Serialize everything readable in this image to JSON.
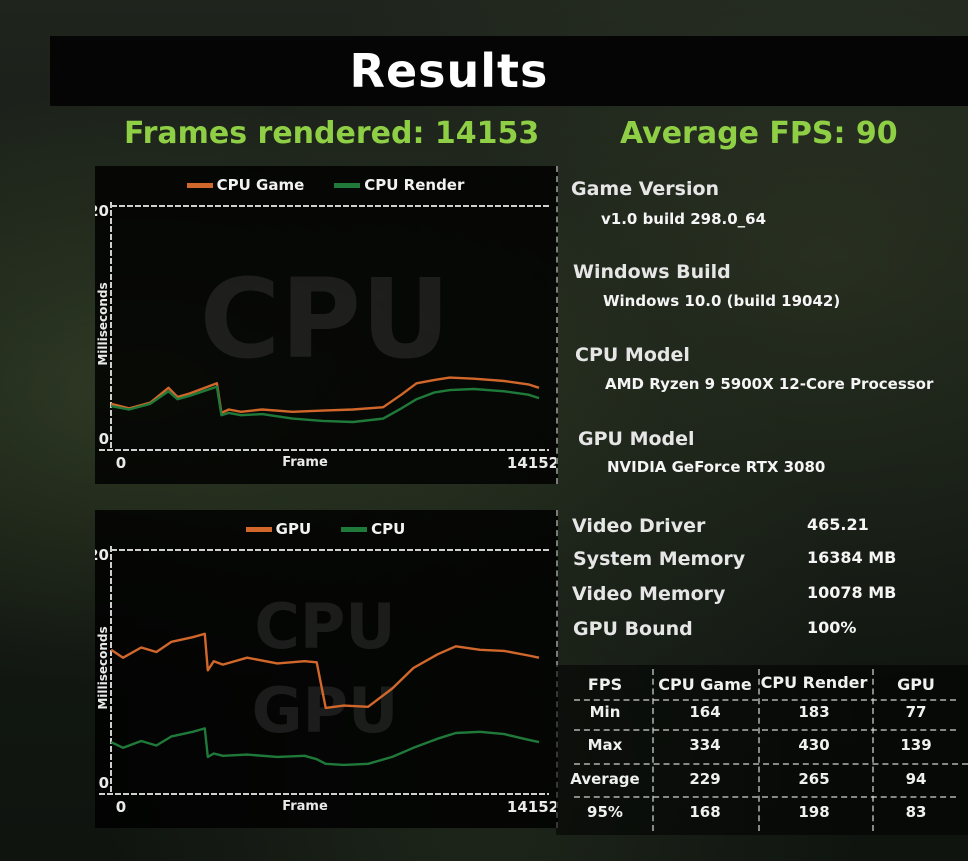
{
  "title": "Results",
  "frames_rendered": "Frames rendered: 14153",
  "average_fps": "Average FPS: 90",
  "colors": {
    "orange": "#d2672b",
    "green": "#1f7a3a",
    "headline": "#8fcf45"
  },
  "chart_data": [
    {
      "type": "line",
      "watermark": "CPU",
      "xlabel": "Frame",
      "ylabel": "Milliseconds",
      "xlim": [
        0,
        14152
      ],
      "ylim": [
        0,
        20
      ],
      "x_tick_labels": [
        "0",
        "14152"
      ],
      "y_tick_labels": [
        "0",
        "20"
      ],
      "legend_position": "top",
      "series": [
        {
          "name": "CPU Game",
          "color": "#d2672b",
          "x": [
            0,
            600,
            1300,
            1900,
            2200,
            2600,
            3500,
            3650,
            3900,
            4300,
            5000,
            6000,
            7000,
            8000,
            9000,
            9600,
            10100,
            10700,
            11200,
            12000,
            13000,
            13800,
            14152
          ],
          "values": [
            3.0,
            2.6,
            3.1,
            4.4,
            3.6,
            3.9,
            4.8,
            2.2,
            2.5,
            2.3,
            2.5,
            2.3,
            2.4,
            2.5,
            2.7,
            3.8,
            4.8,
            5.1,
            5.3,
            5.2,
            5.0,
            4.7,
            4.4
          ]
        },
        {
          "name": "CPU Render",
          "color": "#1f7a3a",
          "x": [
            0,
            600,
            1300,
            1900,
            2200,
            2600,
            3500,
            3650,
            3900,
            4300,
            5000,
            6000,
            7000,
            8000,
            9000,
            9600,
            10100,
            10700,
            11200,
            12000,
            13000,
            13800,
            14152
          ],
          "values": [
            2.8,
            2.5,
            3.0,
            4.1,
            3.4,
            3.7,
            4.5,
            2.0,
            2.2,
            2.0,
            2.1,
            1.7,
            1.5,
            1.4,
            1.7,
            2.6,
            3.4,
            4.0,
            4.2,
            4.3,
            4.1,
            3.8,
            3.5
          ]
        }
      ]
    },
    {
      "type": "line",
      "watermark_lines": [
        "CPU",
        "GPU"
      ],
      "xlabel": "Frame",
      "ylabel": "Milliseconds",
      "xlim": [
        0,
        14152
      ],
      "ylim": [
        0,
        20
      ],
      "x_tick_labels": [
        "0",
        "14152"
      ],
      "y_tick_labels": [
        "0",
        "20"
      ],
      "legend_position": "top",
      "series": [
        {
          "name": "GPU",
          "color": "#d2672b",
          "x": [
            0,
            400,
            1000,
            1500,
            2000,
            2700,
            3100,
            3200,
            3400,
            3700,
            4500,
            5500,
            6400,
            6800,
            7100,
            7700,
            8500,
            9300,
            10000,
            10800,
            11400,
            12200,
            13000,
            13800,
            14152
          ],
          "values": [
            11.6,
            10.9,
            11.8,
            11.4,
            12.3,
            12.7,
            13.0,
            9.8,
            10.6,
            10.3,
            10.9,
            10.4,
            10.6,
            10.5,
            6.5,
            6.7,
            6.6,
            8.2,
            10.0,
            11.2,
            11.9,
            11.6,
            11.5,
            11.1,
            10.9
          ]
        },
        {
          "name": "CPU",
          "color": "#1f7a3a",
          "x": [
            0,
            400,
            1000,
            1500,
            2000,
            2700,
            3100,
            3200,
            3400,
            3700,
            4500,
            5500,
            6400,
            6800,
            7100,
            7700,
            8500,
            9300,
            10000,
            10800,
            11400,
            12200,
            13000,
            13800,
            14152
          ],
          "values": [
            3.5,
            3.0,
            3.6,
            3.2,
            4.0,
            4.4,
            4.7,
            2.2,
            2.5,
            2.3,
            2.4,
            2.2,
            2.3,
            2.0,
            1.6,
            1.5,
            1.6,
            2.2,
            3.0,
            3.8,
            4.3,
            4.4,
            4.2,
            3.7,
            3.5
          ]
        }
      ]
    }
  ],
  "system_info": [
    {
      "label": "Game Version",
      "value": "v1.0 build 298.0_64"
    },
    {
      "label": "Windows Build",
      "value": "Windows 10.0 (build 19042)"
    },
    {
      "label": "CPU Model",
      "value": "AMD Ryzen 9 5900X 12-Core Processor"
    },
    {
      "label": "GPU Model",
      "value": "NVIDIA GeForce RTX 3080"
    }
  ],
  "specs": [
    {
      "label": "Video Driver",
      "value": "465.21"
    },
    {
      "label": "System Memory",
      "value": "16384 MB"
    },
    {
      "label": "Video Memory",
      "value": "10078 MB"
    },
    {
      "label": "GPU Bound",
      "value": "100%"
    }
  ],
  "fps_table": {
    "headers": [
      "FPS",
      "CPU Game",
      "CPU Render",
      "GPU"
    ],
    "rows": [
      {
        "label": "Min",
        "values": [
          "164",
          "183",
          "77"
        ]
      },
      {
        "label": "Max",
        "values": [
          "334",
          "430",
          "139"
        ]
      },
      {
        "label": "Average",
        "values": [
          "229",
          "265",
          "94"
        ]
      },
      {
        "label": "95%",
        "values": [
          "168",
          "198",
          "83"
        ]
      }
    ]
  }
}
